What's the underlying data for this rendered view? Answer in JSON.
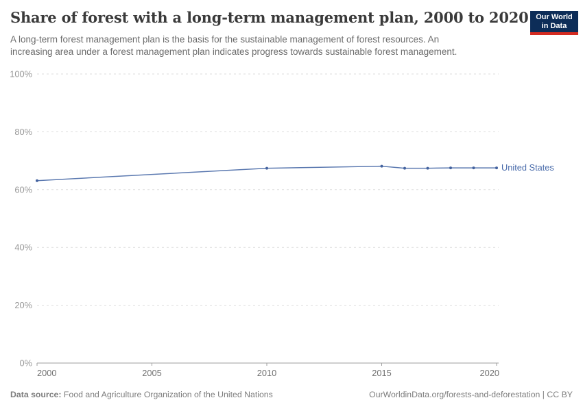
{
  "header": {
    "title": "Share of forest with a long-term management plan, 2000 to 2020",
    "subtitle_line1": "A long-term forest management plan is the basis for the sustainable management of forest resources. An",
    "subtitle_line2": "increasing area under a forest management plan indicates progress towards sustainable forest management."
  },
  "logo": {
    "line1": "Our World",
    "line2": "in Data"
  },
  "footer": {
    "source_label": "Data source:",
    "source_text": "Food and Agriculture Organization of the United Nations",
    "link_text": "OurWorldinData.org/forests-and-deforestation | CC BY"
  },
  "colors": {
    "series_line": "#5b79b0",
    "series_dot": "#44639f",
    "series_label": "#4a6cab",
    "grid": "#dcdcdc",
    "axis": "#9e9e9e",
    "y_tick_label": "#989898",
    "x_tick_label": "#707070",
    "title": "#3a3a3a",
    "subtitle": "#6b6b6b",
    "footer": "#7d7d7d",
    "logo_bg": "#0d2d58",
    "logo_bar": "#d42b21"
  },
  "chart_data": {
    "type": "line",
    "title": "Share of forest with a long-term management plan, 2000 to 2020",
    "xlabel": "",
    "ylabel": "",
    "xlim": [
      2000,
      2020
    ],
    "ylim": [
      0,
      100
    ],
    "x_ticks": [
      2000,
      2005,
      2010,
      2015,
      2020
    ],
    "y_ticks": [
      0,
      20,
      40,
      60,
      80,
      100
    ],
    "y_tick_suffix": "%",
    "grid": "horizontal-dashed",
    "legend_position": "end-of-line",
    "series": [
      {
        "name": "United States",
        "x": [
          2000,
          2010,
          2015,
          2016,
          2017,
          2018,
          2019,
          2020
        ],
        "values": [
          63.1,
          67.4,
          68.1,
          67.4,
          67.4,
          67.5,
          67.5,
          67.5
        ]
      }
    ]
  }
}
